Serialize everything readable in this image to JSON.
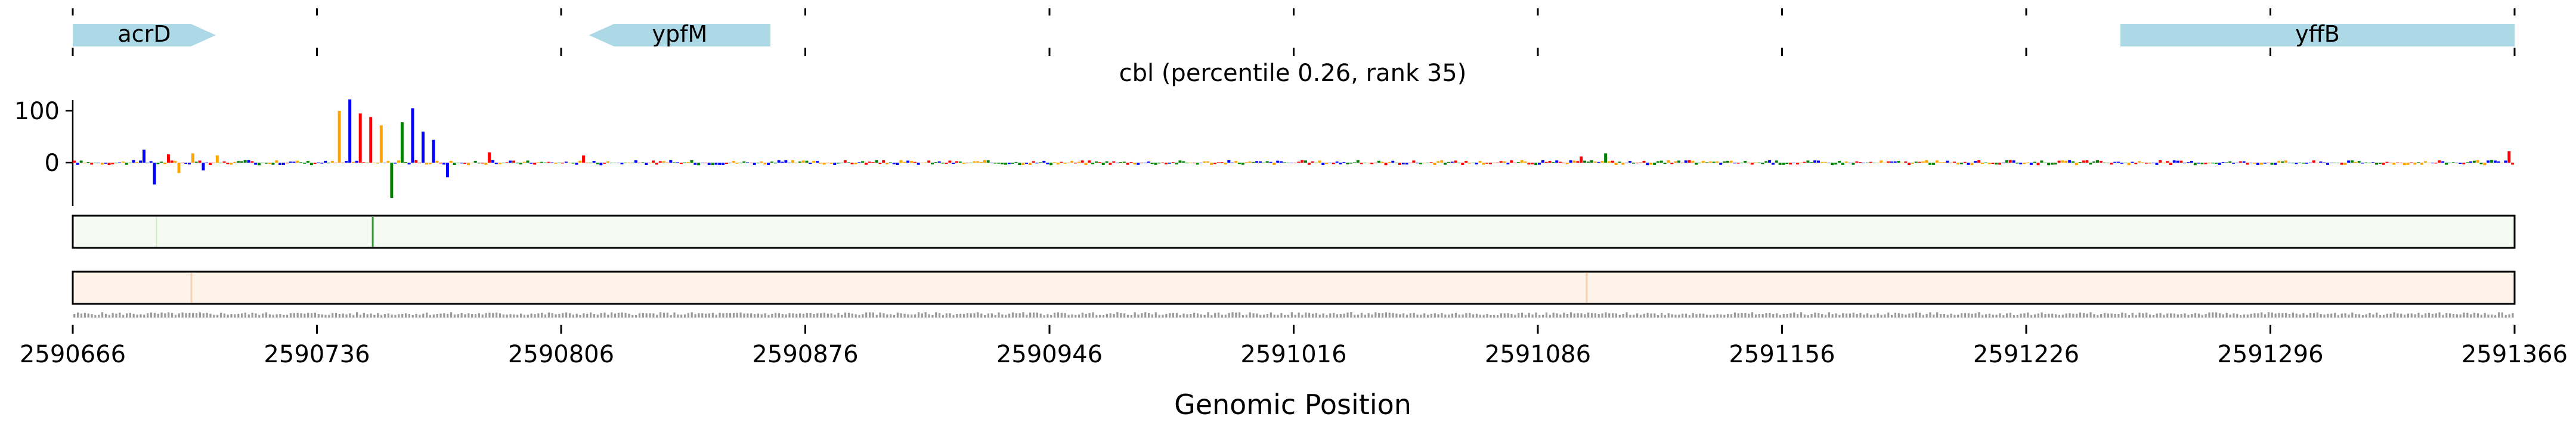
{
  "chart_data": {
    "type": "sequence-logo-track",
    "title": "cbl (percentile 0.26, rank 35)",
    "xlabel": "Genomic Position",
    "xlim": [
      2590666,
      2591366
    ],
    "x_ticks": [
      "2590666",
      "2590736",
      "2590806",
      "2590876",
      "2590946",
      "2591016",
      "2591086",
      "2591156",
      "2591226",
      "2591296",
      "2591366"
    ],
    "y_ticks": [
      "100",
      "0"
    ],
    "ylim": [
      -70,
      125
    ],
    "genes": [
      {
        "name": "acrD",
        "start": 2590666,
        "end": 2590707,
        "strand": "+"
      },
      {
        "name": "ypfM",
        "start": 2590814,
        "end": 2590866,
        "strand": "-"
      },
      {
        "name": "yffB",
        "start": 2591253,
        "end": 2591366,
        "strand": "+"
      }
    ],
    "logo_peaks": [
      {
        "x": 2590686,
        "y": 25
      },
      {
        "x": 2590689,
        "y": -42
      },
      {
        "x": 2590693,
        "y": 16
      },
      {
        "x": 2590696,
        "y": -20
      },
      {
        "x": 2590700,
        "y": 18
      },
      {
        "x": 2590703,
        "y": -15
      },
      {
        "x": 2590707,
        "y": 14
      },
      {
        "x": 2590742,
        "y": 100
      },
      {
        "x": 2590745,
        "y": 122
      },
      {
        "x": 2590748,
        "y": 95
      },
      {
        "x": 2590751,
        "y": 88
      },
      {
        "x": 2590754,
        "y": 72
      },
      {
        "x": 2590757,
        "y": -68
      },
      {
        "x": 2590760,
        "y": 78
      },
      {
        "x": 2590763,
        "y": 105
      },
      {
        "x": 2590766,
        "y": 60
      },
      {
        "x": 2590769,
        "y": 44
      },
      {
        "x": 2590773,
        "y": -28
      },
      {
        "x": 2590785,
        "y": 20
      },
      {
        "x": 2590812,
        "y": 14
      },
      {
        "x": 2591098,
        "y": 12
      },
      {
        "x": 2591105,
        "y": 18
      },
      {
        "x": 2591364,
        "y": 22
      }
    ],
    "track_green_peak": 2590752,
    "track_orange_peaks": [
      2590700,
      2591100
    ]
  },
  "colors": {
    "gene": "#add8e6",
    "A": "#008000",
    "C": "#0000ff",
    "G": "#ffa500",
    "T": "#ff0000",
    "track1_bg": "#f5fbf2",
    "track1_line": "#3a9a3a",
    "track2_bg": "#fdf3e8",
    "track2_line": "#e9a06a"
  }
}
